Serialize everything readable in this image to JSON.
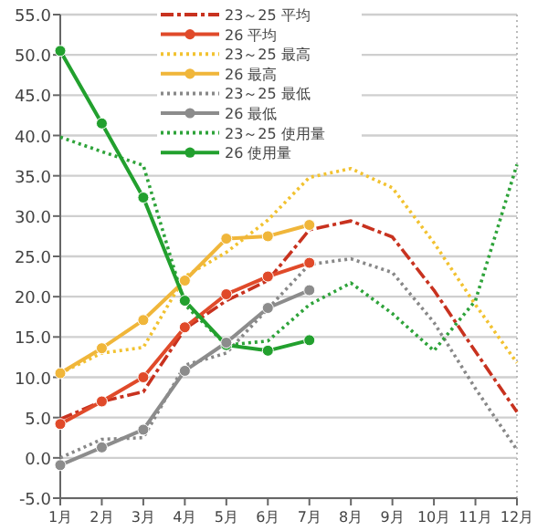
{
  "chart_data": {
    "type": "line",
    "categories": [
      "1月",
      "2月",
      "3月",
      "4月",
      "5月",
      "6月",
      "7月",
      "8月",
      "9月",
      "10月",
      "11月",
      "12月"
    ],
    "ylim": [
      -5,
      55
    ],
    "yticks": [
      {
        "value": -5,
        "label": "-5.0"
      },
      {
        "value": 0,
        "label": "0.0"
      },
      {
        "value": 5,
        "label": "5.0"
      },
      {
        "value": 10,
        "label": "10.0"
      },
      {
        "value": 15,
        "label": "15.0"
      },
      {
        "value": 20,
        "label": "20.0"
      },
      {
        "value": 25,
        "label": "25.0"
      },
      {
        "value": 30,
        "label": "30.0"
      },
      {
        "value": 35,
        "label": "35.0"
      },
      {
        "value": 40,
        "label": "40.0"
      },
      {
        "value": 45,
        "label": "45.0"
      },
      {
        "value": 50,
        "label": "50.0"
      },
      {
        "value": 55,
        "label": "55.0"
      }
    ],
    "grid": "y",
    "legend": "top",
    "series": [
      {
        "name": "23～25 平均",
        "color": "#c8321f",
        "line_style": "dashed",
        "marker": "none",
        "values": [
          4.8,
          7.0,
          8.2,
          16.0,
          19.5,
          22.0,
          28.3,
          29.4,
          27.4,
          20.8,
          13.2,
          5.7
        ]
      },
      {
        "name": "26 平均",
        "color": "#e04a2a",
        "line_style": "solid",
        "marker": "circle",
        "values": [
          4.2,
          7.0,
          10.0,
          16.2,
          20.3,
          22.5,
          24.2,
          null,
          null,
          null,
          null,
          null
        ]
      },
      {
        "name": "23～25 最高",
        "color": "#f2c230",
        "line_style": "dotted",
        "marker": "none",
        "values": [
          10.5,
          13.0,
          13.7,
          22.5,
          25.5,
          29.5,
          34.8,
          35.9,
          33.5,
          26.7,
          19.0,
          11.8
        ]
      },
      {
        "name": "26 最高",
        "color": "#f0b63a",
        "line_style": "solid",
        "marker": "circle",
        "values": [
          10.5,
          13.6,
          17.1,
          22.0,
          27.2,
          27.5,
          28.9,
          null,
          null,
          null,
          null,
          null
        ]
      },
      {
        "name": "23～25 最低",
        "color": "#888888",
        "line_style": "dotted",
        "marker": "none",
        "values": [
          0.0,
          2.3,
          2.5,
          11.5,
          13.0,
          18.5,
          24.0,
          24.7,
          23.0,
          16.8,
          8.6,
          1.0
        ]
      },
      {
        "name": "26 最低",
        "color": "#8c8c8c",
        "line_style": "solid",
        "marker": "circle",
        "values": [
          -0.9,
          1.3,
          3.5,
          10.8,
          14.3,
          18.6,
          20.8,
          null,
          null,
          null,
          null,
          null
        ]
      },
      {
        "name": "23～25 使用量",
        "color": "#2ea33a",
        "line_style": "dotted",
        "marker": "none",
        "values": [
          39.8,
          38.0,
          36.3,
          19.0,
          14.0,
          14.5,
          19.0,
          21.7,
          17.9,
          13.3,
          19.5,
          36.4
        ]
      },
      {
        "name": "26 使用量",
        "color": "#22a02e",
        "line_style": "solid",
        "marker": "circle",
        "values": [
          50.5,
          41.5,
          32.3,
          19.5,
          14.0,
          13.3,
          14.6,
          null,
          null,
          null,
          null,
          null
        ]
      }
    ]
  }
}
